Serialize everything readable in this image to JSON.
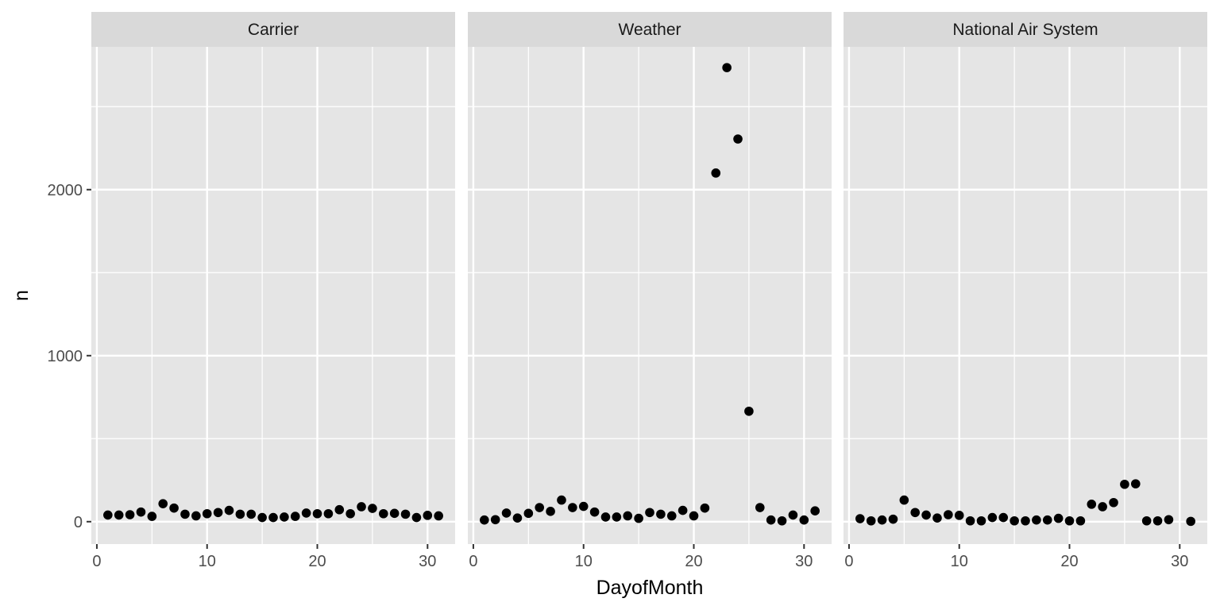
{
  "chart_data": {
    "type": "scatter",
    "xlabel": "DayofMonth",
    "ylabel": "n",
    "xlim": [
      -0.5,
      32.5
    ],
    "ylim": [
      -135,
      2860
    ],
    "x_ticks": [
      0,
      10,
      20,
      30
    ],
    "y_ticks": [
      0,
      1000,
      2000
    ],
    "grid": true,
    "colors": {
      "panel": "#e5e5e5",
      "strip": "#d9d9d9",
      "grid": "#ffffff",
      "point": "#000000"
    },
    "facets": [
      {
        "name": "Carrier",
        "x": [
          1,
          2,
          3,
          4,
          5,
          6,
          7,
          8,
          9,
          10,
          11,
          12,
          13,
          14,
          15,
          16,
          17,
          18,
          19,
          20,
          21,
          22,
          23,
          24,
          25,
          26,
          27,
          28,
          29,
          30,
          31
        ],
        "y": [
          40,
          40,
          42,
          58,
          32,
          108,
          82,
          45,
          35,
          48,
          55,
          68,
          45,
          45,
          25,
          25,
          28,
          32,
          52,
          48,
          48,
          72,
          48,
          90,
          80,
          48,
          50,
          45,
          25,
          38,
          35
        ]
      },
      {
        "name": "Weather",
        "x": [
          1,
          2,
          3,
          4,
          5,
          6,
          7,
          8,
          9,
          10,
          11,
          12,
          13,
          14,
          15,
          16,
          17,
          18,
          19,
          20,
          21,
          22,
          23,
          24,
          25,
          26,
          27,
          28,
          29,
          30,
          31
        ],
        "y": [
          10,
          12,
          52,
          22,
          50,
          85,
          62,
          130,
          85,
          92,
          58,
          28,
          28,
          35,
          20,
          55,
          45,
          35,
          68,
          35,
          82,
          2100,
          2735,
          2305,
          665,
          85,
          10,
          5,
          40,
          10,
          65
        ]
      },
      {
        "name": "National Air System",
        "x": [
          1,
          2,
          3,
          4,
          5,
          6,
          7,
          8,
          9,
          10,
          11,
          12,
          13,
          14,
          15,
          16,
          17,
          18,
          19,
          20,
          21,
          22,
          23,
          24,
          25,
          26,
          27,
          28,
          29,
          31
        ],
        "y": [
          18,
          5,
          10,
          15,
          130,
          55,
          40,
          22,
          42,
          38,
          5,
          5,
          25,
          25,
          5,
          5,
          10,
          10,
          20,
          5,
          5,
          105,
          90,
          115,
          225,
          228,
          5,
          5,
          12,
          2
        ]
      }
    ]
  }
}
